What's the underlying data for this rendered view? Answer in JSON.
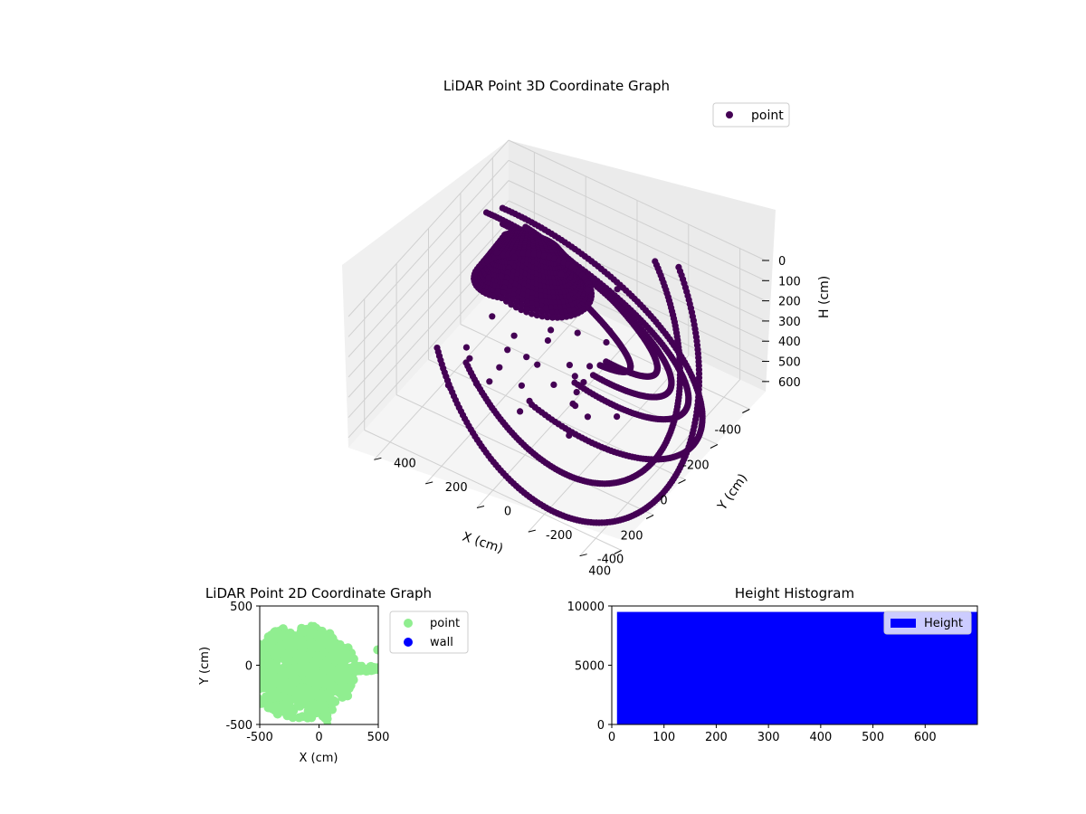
{
  "chart_data": [
    {
      "type": "scatter3d",
      "title": "LiDAR Point 3D Coordinate Graph",
      "xlabel": "X (cm)",
      "ylabel": "Y (cm)",
      "zlabel": "H (cm)",
      "xlim": [
        -500,
        500
      ],
      "ylim": [
        -500,
        500
      ],
      "zlim": [
        0,
        650
      ],
      "zaxis_inverted": true,
      "xticks": [
        -400,
        -200,
        0,
        200,
        400
      ],
      "yticks": [
        -400,
        -200,
        0,
        200,
        400
      ],
      "zticks": [
        0,
        100,
        200,
        300,
        400,
        500,
        600
      ],
      "legend": {
        "position": "upper-right",
        "entries": [
          {
            "label": "point",
            "color": "#440154"
          }
        ]
      },
      "series": [
        {
          "name": "point",
          "color": "#440154",
          "marker": "circle"
        }
      ],
      "grid": true
    },
    {
      "type": "scatter",
      "title": "LiDAR Point 2D Coordinate Graph",
      "xlabel": "X (cm)",
      "ylabel": "Y (cm)",
      "xlim": [
        -500,
        500
      ],
      "ylim": [
        -500,
        500
      ],
      "xticks": [
        -500,
        0,
        500
      ],
      "yticks": [
        -500,
        0,
        500
      ],
      "legend": {
        "position": "outside-right",
        "entries": [
          {
            "label": "point",
            "color": "#90ee90"
          },
          {
            "label": "wall",
            "color": "#0000ff"
          }
        ]
      },
      "series": [
        {
          "name": "point",
          "color": "#90ee90"
        },
        {
          "name": "wall",
          "color": "#0000ff"
        }
      ],
      "grid": false
    },
    {
      "type": "bar",
      "title": "Height Histogram",
      "xlim": [
        0,
        700
      ],
      "ylim": [
        0,
        10000
      ],
      "xticks": [
        0,
        100,
        200,
        300,
        400,
        500,
        600
      ],
      "yticks": [
        0,
        5000,
        10000
      ],
      "bins": [
        {
          "x0": 10,
          "x1": 700,
          "value": 9500
        }
      ],
      "legend": {
        "position": "upper-right",
        "entries": [
          {
            "label": "Height",
            "color": "#0000ff"
          }
        ]
      },
      "series": [
        {
          "name": "Height",
          "color": "#0000ff"
        }
      ],
      "grid": false
    }
  ]
}
